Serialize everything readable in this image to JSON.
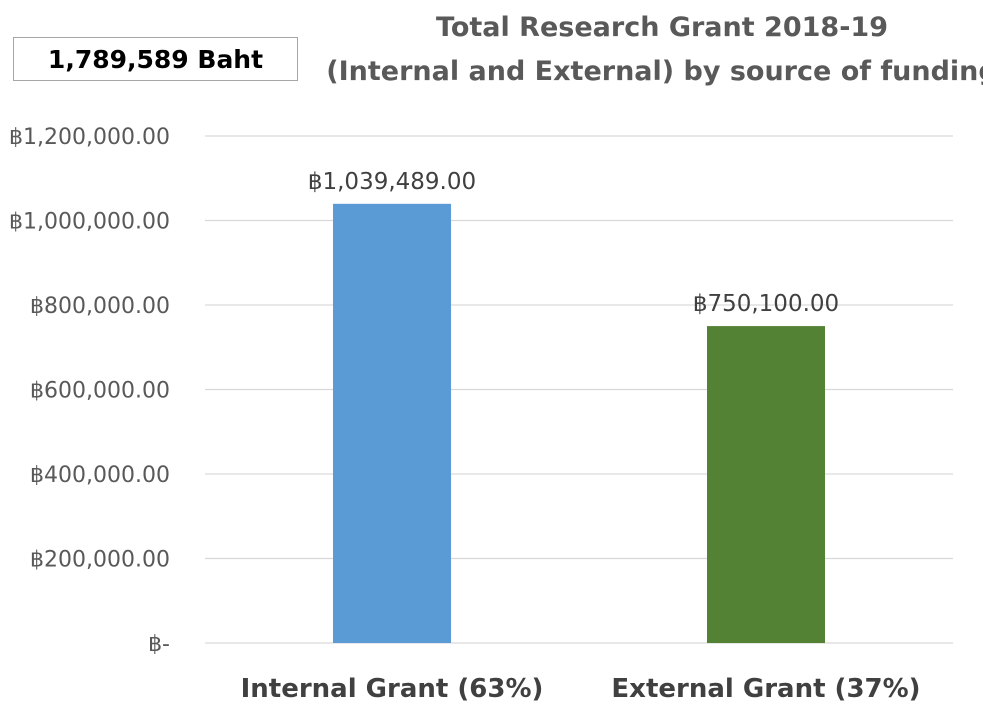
{
  "total_box": {
    "text": "1,789,589 Baht"
  },
  "chart_data": {
    "type": "bar",
    "title_lines": [
      "Total Research Grant 2018-19",
      "(Internal and External) by source of funding"
    ],
    "categories": [
      "Internal Grant (63%)",
      "External Grant (37%)"
    ],
    "values": [
      1039489,
      750100
    ],
    "data_labels": [
      "฿1,039,489.00",
      "฿750,100.00"
    ],
    "bar_colors": [
      "#5b9bd5",
      "#548235"
    ],
    "ylim": [
      0,
      1200000
    ],
    "yticks": [
      {
        "value": 0,
        "label": "฿-"
      },
      {
        "value": 200000,
        "label": "฿200,000.00"
      },
      {
        "value": 400000,
        "label": "฿400,000.00"
      },
      {
        "value": 600000,
        "label": "฿600,000.00"
      },
      {
        "value": 800000,
        "label": "฿800,000.00"
      },
      {
        "value": 1000000,
        "label": "฿1,000,000.00"
      },
      {
        "value": 1200000,
        "label": "฿1,200,000.00"
      }
    ],
    "grid": true,
    "legend": "none"
  }
}
